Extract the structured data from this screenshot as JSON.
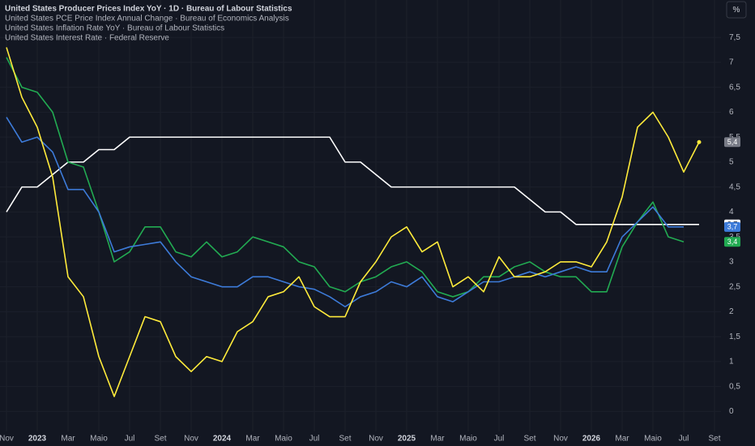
{
  "chart_data": {
    "type": "line",
    "unit": "%",
    "categories": [
      "Nov",
      null,
      "2023",
      null,
      "Mar",
      null,
      "Maio",
      null,
      "Jul",
      null,
      "Set",
      null,
      "Nov",
      null,
      "2024",
      null,
      "Mar",
      null,
      "Maio",
      null,
      "Jul",
      null,
      "Set",
      null,
      "Nov",
      null,
      "2025",
      null,
      "Mar",
      null,
      "Maio",
      null,
      "Jul",
      null,
      "Set",
      null,
      "Nov",
      null,
      "2026",
      null,
      "Mar",
      null,
      "Maio",
      null,
      "Jul",
      null,
      "Set"
    ],
    "series": [
      {
        "name": "United States Producer Prices Index YoY · 1D · Bureau of Labour Statistics",
        "color": "#ffeb3b",
        "tag": "5,4",
        "tag_color": "#787b86",
        "values": [
          7.3,
          6.3,
          5.7,
          4.7,
          2.7,
          2.3,
          1.1,
          0.3,
          1.1,
          1.9,
          1.8,
          1.1,
          0.8,
          1.1,
          1.0,
          1.6,
          1.8,
          2.3,
          2.4,
          2.7,
          2.1,
          1.9,
          1.9,
          2.6,
          3.0,
          3.5,
          3.7,
          3.2,
          3.4,
          2.5,
          2.7,
          2.4,
          3.1,
          2.7,
          2.7,
          2.8,
          3.0,
          3.0,
          2.9,
          3.4,
          4.3,
          5.7,
          6.0,
          5.5,
          4.8,
          5.4,
          null
        ]
      },
      {
        "name": "United States PCE Price Index Annual Change · Bureau of Economics Analysis",
        "color": "#3d7bd9",
        "tag": "3,7",
        "tag_color": "#3d7bd9",
        "values": [
          5.9,
          5.4,
          5.5,
          5.2,
          4.45,
          4.45,
          4.0,
          3.2,
          3.3,
          3.35,
          3.4,
          3.0,
          2.7,
          2.6,
          2.5,
          2.5,
          2.7,
          2.7,
          2.6,
          2.5,
          2.45,
          2.3,
          2.1,
          2.3,
          2.4,
          2.6,
          2.5,
          2.7,
          2.3,
          2.2,
          2.4,
          2.6,
          2.6,
          2.7,
          2.8,
          2.7,
          2.8,
          2.9,
          2.8,
          2.8,
          3.5,
          3.8,
          4.1,
          3.7,
          3.7,
          null,
          null
        ]
      },
      {
        "name": "United States Inflation Rate YoY · Bureau of Labour Statistics",
        "color": "#22ab52",
        "tag": "3,4",
        "tag_color": "#22ab52",
        "values": [
          7.1,
          6.5,
          6.4,
          6.0,
          5.0,
          4.9,
          4.0,
          3.0,
          3.2,
          3.7,
          3.7,
          3.2,
          3.1,
          3.4,
          3.1,
          3.2,
          3.5,
          3.4,
          3.3,
          3.0,
          2.9,
          2.5,
          2.4,
          2.6,
          2.7,
          2.9,
          3.0,
          2.8,
          2.4,
          2.3,
          2.4,
          2.7,
          2.7,
          2.9,
          3.0,
          2.8,
          2.7,
          2.7,
          2.4,
          2.4,
          3.3,
          3.8,
          4.2,
          3.5,
          3.4,
          null,
          null
        ]
      },
      {
        "name": "United States Interest Rate · Federal Reserve",
        "color": "#ffffff",
        "tag": "3,7",
        "tag_color": "#ffffff",
        "values": [
          4.0,
          4.5,
          4.5,
          4.75,
          5.0,
          5.0,
          5.25,
          5.25,
          5.5,
          5.5,
          5.5,
          5.5,
          5.5,
          5.5,
          5.5,
          5.5,
          5.5,
          5.5,
          5.5,
          5.5,
          5.5,
          5.5,
          5.0,
          5.0,
          4.75,
          4.5,
          4.5,
          4.5,
          4.5,
          4.5,
          4.5,
          4.5,
          4.5,
          4.5,
          4.25,
          4.0,
          4.0,
          3.75,
          3.75,
          3.75,
          3.75,
          3.75,
          3.75,
          3.75,
          3.75,
          3.75,
          null
        ]
      }
    ],
    "ylim": [
      -0.4,
      8.25
    ],
    "yticks": [
      0,
      {
        "value": 0.5,
        "label": "0,5"
      },
      1,
      {
        "value": 1.5,
        "label": "1,5"
      },
      2,
      {
        "value": 2.5,
        "label": "2,5"
      },
      3,
      {
        "value": 3.5,
        "label": "3,5"
      },
      4,
      {
        "value": 4.5,
        "label": "4,5"
      },
      5,
      {
        "value": 5.5,
        "label": "5,5"
      },
      6,
      {
        "value": 6.5,
        "label": "6,5"
      },
      7,
      {
        "value": 7.5,
        "label": "7,5"
      }
    ],
    "grid": true
  }
}
